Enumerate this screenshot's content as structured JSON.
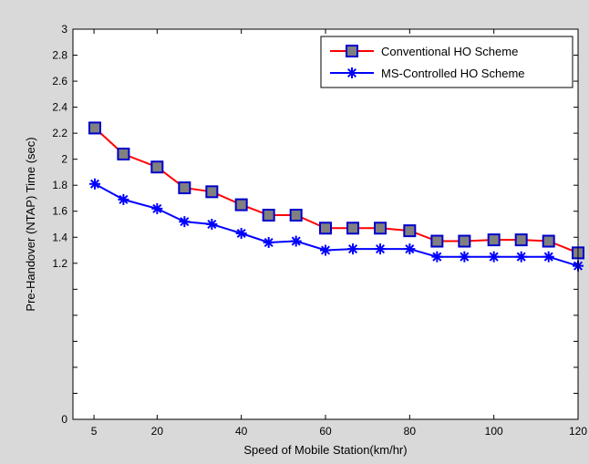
{
  "chart_data": {
    "type": "line",
    "title": "",
    "xlabel": "Speed of Mobile Station(km/hr)",
    "ylabel": "Pre-Handover (NTAP) Time (sec)",
    "xlim": [
      0,
      120
    ],
    "ylim": [
      0,
      3
    ],
    "x_ticks": [
      5,
      20,
      40,
      60,
      80,
      100,
      120
    ],
    "x_tick_labels": [
      "5",
      "20",
      "40",
      "60",
      "80",
      "100",
      "120"
    ],
    "y_ticks": [
      0,
      0.2,
      0.4,
      0.6,
      0.8,
      1,
      1.2,
      1.4,
      1.6,
      1.8,
      2,
      2.2,
      2.4,
      2.6,
      2.8,
      3
    ],
    "y_tick_labels": [
      "0",
      "",
      "",
      "",
      "",
      "",
      "1.2",
      "1.4",
      "1.6",
      "1.8",
      "2",
      "2.2",
      "2.4",
      "2.6",
      "2.8",
      "3"
    ],
    "grid": false,
    "legend_position": "top-right",
    "x": [
      5.2,
      12,
      20,
      26.5,
      33,
      40,
      46.5,
      53,
      60,
      66.5,
      73,
      80,
      86.5,
      93,
      100,
      106.5,
      113,
      120
    ],
    "series": [
      {
        "name": "Conventional HO Scheme",
        "color": "#ff0000",
        "marker": "square",
        "marker_fill": "#808080",
        "marker_edge": "#0000cc",
        "values": [
          2.24,
          2.04,
          1.94,
          1.78,
          1.75,
          1.65,
          1.57,
          1.57,
          1.47,
          1.47,
          1.47,
          1.45,
          1.37,
          1.37,
          1.38,
          1.38,
          1.37,
          1.28
        ]
      },
      {
        "name": "MS-Controlled HO Scheme",
        "color": "#0000ff",
        "marker": "asterisk",
        "values": [
          1.81,
          1.69,
          1.62,
          1.52,
          1.5,
          1.43,
          1.36,
          1.37,
          1.3,
          1.31,
          1.31,
          1.31,
          1.25,
          1.25,
          1.25,
          1.25,
          1.25,
          1.18
        ]
      }
    ]
  }
}
